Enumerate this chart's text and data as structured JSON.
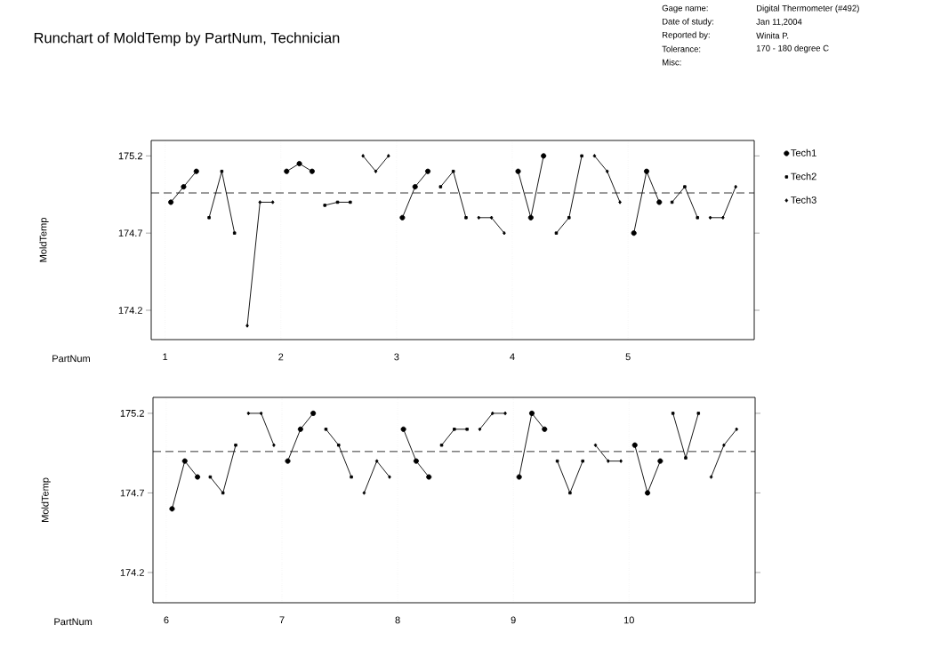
{
  "chart_data": [
    {
      "type": "line",
      "title": "Runchart of MoldTemp by PartNum, Technician",
      "xlabel": "PartNum",
      "ylabel": "MoldTemp",
      "annotations": [
        "Gage name:",
        "Digital Thermometer (#492)",
        "Date of study:",
        "Jan 11,2004",
        "Reported by:",
        "Winita P.",
        "Tolerance:",
        "170 - 180 degree C",
        "Misc:"
      ],
      "xlim": [
        0.88,
        6.09
      ],
      "ylim": [
        174.01,
        175.3
      ],
      "xticks": [
        1,
        2,
        3,
        4,
        5
      ],
      "yticks": [
        174.2,
        174.7,
        175.2
      ],
      "grid": "x",
      "legend": "right",
      "ref_lines": [
        {
          "axis": "y",
          "value": 174.96,
          "line_style": "dashed"
        }
      ],
      "series": [
        {
          "name": "Tech1",
          "color": "#000000",
          "marker": "circle",
          "x": [
            1.05,
            1.16,
            1.27,
            1.5,
            2.05,
            2.16,
            2.27,
            2.5,
            3.05,
            3.16,
            3.27,
            3.5,
            4.05,
            4.16,
            4.27,
            4.5,
            5.05,
            5.16,
            5.27
          ],
          "values": [
            174.9,
            175.0,
            175.1,
            null,
            175.1,
            175.15,
            175.1,
            null,
            174.8,
            175.0,
            175.1,
            null,
            175.1,
            174.8,
            175.2,
            null,
            174.7,
            175.1,
            174.9
          ]
        },
        {
          "name": "Tech2",
          "color": "#000000",
          "marker": "square",
          "x": [
            1.38,
            1.49,
            1.6,
            1.65,
            2.38,
            2.49,
            2.6,
            2.65,
            3.38,
            3.49,
            3.6,
            3.65,
            4.38,
            4.49,
            4.6,
            4.65,
            5.38,
            5.49,
            5.6
          ],
          "values": [
            174.8,
            175.1,
            174.7,
            null,
            174.88,
            174.9,
            174.9,
            null,
            175.0,
            175.1,
            174.8,
            null,
            174.7,
            174.8,
            175.2,
            null,
            174.9,
            175.0,
            174.8
          ]
        },
        {
          "name": "Tech3",
          "color": "#000000",
          "marker": "diamond",
          "x": [
            1.71,
            1.82,
            1.93,
            1.96,
            2.71,
            2.82,
            2.93,
            2.96,
            3.71,
            3.82,
            3.93,
            3.96,
            4.71,
            4.82,
            4.93,
            4.96,
            5.71,
            5.82,
            5.93
          ],
          "values": [
            174.1,
            174.9,
            174.9,
            null,
            175.2,
            175.1,
            175.2,
            null,
            174.8,
            174.8,
            174.7,
            null,
            175.2,
            175.1,
            174.9,
            null,
            174.8,
            174.8,
            175.0
          ]
        }
      ]
    },
    {
      "type": "line",
      "xlabel": "PartNum",
      "ylabel": "MoldTemp",
      "xlim": [
        5.885,
        11.09
      ],
      "ylim": [
        174.01,
        175.3
      ],
      "xticks": [
        6,
        7,
        8,
        9,
        10
      ],
      "yticks": [
        174.2,
        174.7,
        175.2
      ],
      "grid": "x",
      "ref_lines": [
        {
          "axis": "y",
          "value": 174.96,
          "line_style": "dashed"
        }
      ],
      "series": [
        {
          "color": "#000000",
          "marker": "circle",
          "x": [
            6.05,
            6.16,
            6.27,
            6.5,
            7.05,
            7.16,
            7.27,
            7.5,
            8.05,
            8.16,
            8.27,
            8.5,
            9.05,
            9.16,
            9.27,
            9.5,
            10.05,
            10.16,
            10.27
          ],
          "values": [
            174.6,
            174.9,
            174.8,
            null,
            174.9,
            175.1,
            175.2,
            null,
            175.1,
            174.9,
            174.8,
            null,
            174.8,
            175.2,
            175.1,
            null,
            175.0,
            174.7,
            174.9
          ]
        },
        {
          "color": "#000000",
          "marker": "square",
          "x": [
            6.38,
            6.49,
            6.6,
            6.65,
            7.38,
            7.49,
            7.6,
            7.65,
            8.38,
            8.49,
            8.6,
            8.65,
            9.38,
            9.49,
            9.6,
            9.65,
            10.38,
            10.49,
            10.6
          ],
          "values": [
            174.8,
            174.7,
            175.0,
            null,
            175.1,
            175.0,
            174.8,
            null,
            175.0,
            175.1,
            175.1,
            null,
            174.9,
            174.7,
            174.9,
            null,
            175.2,
            174.92,
            175.2
          ]
        },
        {
          "color": "#000000",
          "marker": "diamond",
          "x": [
            6.71,
            6.82,
            6.93,
            6.96,
            7.71,
            7.82,
            7.93,
            7.96,
            8.71,
            8.82,
            8.93,
            8.96,
            9.71,
            9.82,
            9.93,
            9.96,
            10.71,
            10.82,
            10.93
          ],
          "values": [
            175.2,
            175.2,
            175.0,
            null,
            174.7,
            174.9,
            174.8,
            null,
            175.1,
            175.2,
            175.2,
            null,
            175.0,
            174.9,
            174.9,
            null,
            174.8,
            175.0,
            175.1
          ]
        }
      ]
    }
  ]
}
